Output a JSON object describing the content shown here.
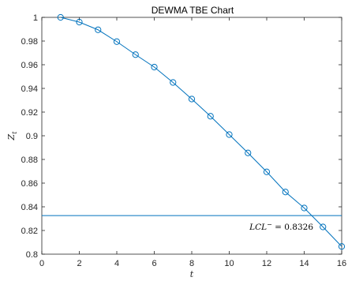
{
  "chart_data": {
    "type": "line",
    "title": "DEWMA TBE Chart",
    "xlabel": "t",
    "ylabel": "Z",
    "ylabel_subscript": "t",
    "xlim": [
      0,
      16
    ],
    "ylim": [
      0.8,
      1.0
    ],
    "x_ticks": [
      0,
      2,
      4,
      6,
      8,
      10,
      12,
      14,
      16
    ],
    "y_ticks": [
      0.8,
      0.82,
      0.84,
      0.86,
      0.88,
      0.9,
      0.92,
      0.94,
      0.96,
      0.98,
      1.0
    ],
    "x_tick_labels": [
      "0",
      "2",
      "4",
      "6",
      "8",
      "10",
      "12",
      "14",
      "16"
    ],
    "y_tick_labels": [
      "0.8",
      "0.82",
      "0.84",
      "0.86",
      "0.88",
      "0.9",
      "0.92",
      "0.94",
      "0.96",
      "0.98",
      "1"
    ],
    "grid": false,
    "series": [
      {
        "marker": "circle",
        "color": "#0072BD",
        "x": [
          1,
          2,
          3,
          4,
          5,
          6,
          7,
          8,
          9,
          10,
          11,
          12,
          13,
          14,
          15,
          16
        ],
        "values": [
          1.0,
          0.996,
          0.9895,
          0.9795,
          0.9685,
          0.958,
          0.945,
          0.931,
          0.9165,
          0.901,
          0.8855,
          0.8695,
          0.8525,
          0.839,
          0.823,
          0.8065
        ]
      }
    ],
    "reference_line": {
      "y": 0.8326,
      "color": "#0072BD",
      "label": "LCL",
      "label_superscript": "−",
      "label_value": " = 0.8326"
    }
  }
}
